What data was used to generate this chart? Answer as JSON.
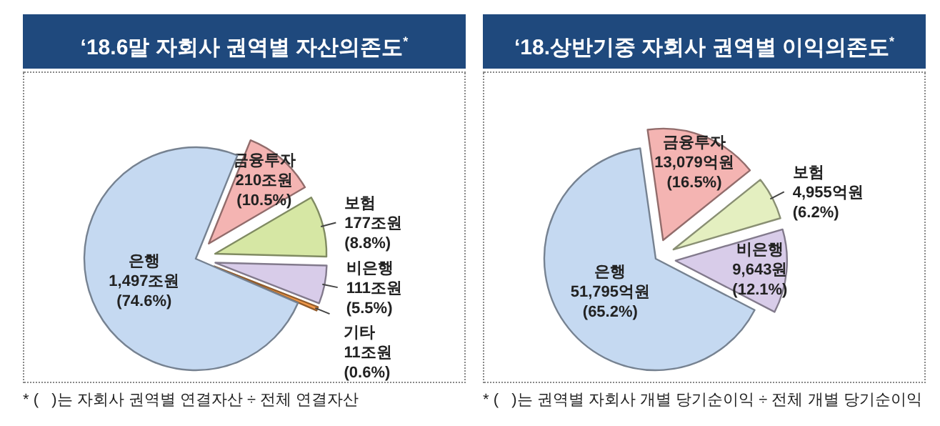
{
  "chart_data": [
    {
      "type": "pie",
      "title": "‘18.6말 자회사 권역별 자산의존도$^{*}$",
      "categories": [
        "금융투자",
        "보험",
        "비은행",
        "기타",
        "은행"
      ],
      "values": [
        210,
        177,
        111,
        11,
        1497
      ],
      "value_labels": [
        "210조원 (10.5%)",
        "177조원 (8.8%)",
        "111조원 (5.5%)",
        "11조원 (0.6%)",
        "1,497조원 (74.6%)"
      ],
      "colors": [
        "#f4b4b2",
        "#d6e7a4",
        "#d8cce9",
        "#f39a4a",
        "#c5d9f1"
      ],
      "annotations": [
        "* (   )는 자회사 권역별 연결자산 ÷ 전체 연결자산"
      ]
    },
    {
      "type": "pie",
      "title": "‘18.상반기중 자회사 권역별 이익의존도$^{*}$",
      "categories": [
        "금융투자",
        "보험",
        "비은행",
        "은행"
      ],
      "values": [
        13079,
        4955,
        9643,
        51795
      ],
      "value_labels": [
        "13,079억원 (16.5%)",
        "4,955억원 (6.2%)",
        "9,643원 (12.1%)",
        "51,795억원 (65.2%)"
      ],
      "colors": [
        "#f4b4b2",
        "#e4efc0",
        "#d8cce9",
        "#c5d9f1"
      ],
      "annotations": [
        "* (   )는 권역별 자회사 개별 당기순이익 ÷ 전체 개별 당기순이익"
      ]
    }
  ]
}
